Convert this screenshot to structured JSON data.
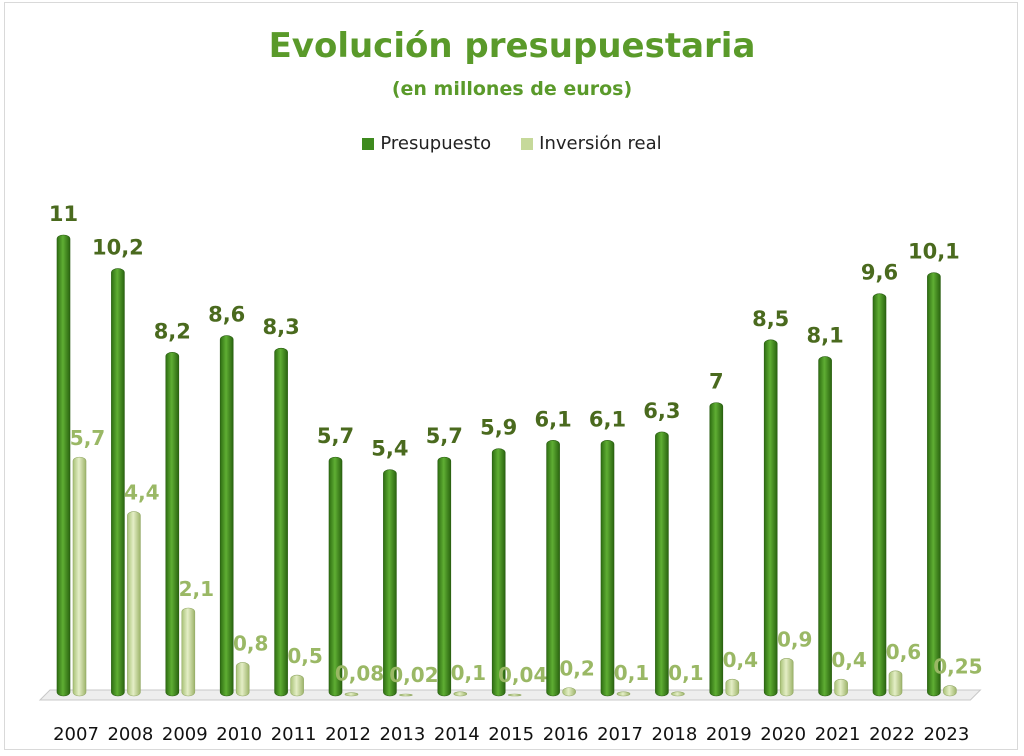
{
  "chart_data": {
    "type": "bar",
    "title": "Evolución presupuestaria",
    "subtitle": "(en millones de euros)",
    "categories": [
      "2007",
      "2008",
      "2009",
      "2010",
      "2011",
      "2012",
      "2013",
      "2014",
      "2015",
      "2016",
      "2017",
      "2018",
      "2019",
      "2020",
      "2021",
      "2022",
      "2023"
    ],
    "series": [
      {
        "name": "Presupuesto",
        "color": "#3e8a1e",
        "values": [
          11,
          10.2,
          8.2,
          8.6,
          8.3,
          5.7,
          5.4,
          5.7,
          5.9,
          6.1,
          6.1,
          6.3,
          7,
          8.5,
          8.1,
          9.6,
          10.1
        ],
        "labels": [
          "11",
          "10,2",
          "8,2",
          "8,6",
          "8,3",
          "5,7",
          "5,4",
          "5,7",
          "5,9",
          "6,1",
          "6,1",
          "6,3",
          "7",
          "8,5",
          "8,1",
          "9,6",
          "10,1"
        ]
      },
      {
        "name": "Inversión real",
        "color": "#c6d99a",
        "values": [
          5.7,
          4.4,
          2.1,
          0.8,
          0.5,
          0.08,
          0.02,
          0.1,
          0.04,
          0.2,
          0.1,
          0.1,
          0.4,
          0.9,
          0.4,
          0.6,
          0.25
        ],
        "labels": [
          "5,7",
          "4,4",
          "2,1",
          "0,8",
          "0,5",
          "0,08",
          "0,02",
          "0,1",
          "0,04",
          "0,2",
          "0,1",
          "0,1",
          "0,4",
          "0,9",
          "0,4",
          "0,6",
          "0,25"
        ]
      }
    ],
    "ylim": [
      0,
      11
    ],
    "grid": false,
    "legend_position": "top"
  }
}
